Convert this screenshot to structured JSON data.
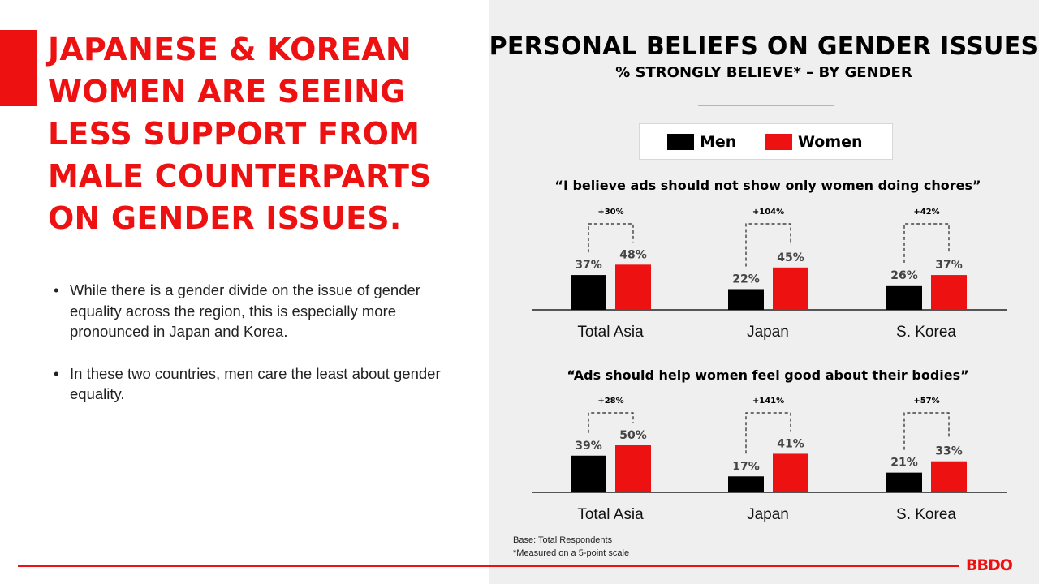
{
  "slide": {
    "headline": "JAPANESE & KOREAN WOMEN ARE SEEING LESS SUPPORT FROM MALE COUNTERPARTS ON GENDER ISSUES.",
    "bullets": [
      "While there is a gender divide on the issue of gender equality across the region, this is especially more pronounced in Japan and Korea.",
      "In these two countries, men care the least about gender equality."
    ],
    "footnotes": [
      "Base: Total Respondents",
      "*Measured on a 5-point scale"
    ],
    "logo": "BBDO"
  },
  "colors": {
    "accent": "#ee1111",
    "men": "#000000",
    "women": "#ee1111"
  },
  "legend": {
    "men": "Men",
    "women": "Women"
  },
  "chart_data": {
    "type": "bar",
    "title": "PERSONAL BELIEFS ON GENDER ISSUES",
    "subtitle": "% STRONGLY BELIEVE* – BY GENDER",
    "legend": [
      "Men",
      "Women"
    ],
    "panels": [
      {
        "title": "“I believe ads should not show only women doing chores”",
        "categories": [
          "Total Asia",
          "Japan",
          "S. Korea"
        ],
        "series": [
          {
            "name": "Men",
            "values": [
              37,
              22,
              26
            ],
            "labels": [
              "37%",
              "22%",
              "26%"
            ]
          },
          {
            "name": "Women",
            "values": [
              48,
              45,
              37
            ],
            "labels": [
              "48%",
              "45%",
              "37%"
            ]
          }
        ],
        "differences": [
          "+30%",
          "+104%",
          "+42%"
        ]
      },
      {
        "title": "“Ads should help women feel good about their bodies”",
        "categories": [
          "Total Asia",
          "Japan",
          "S. Korea"
        ],
        "series": [
          {
            "name": "Men",
            "values": [
              39,
              17,
              21
            ],
            "labels": [
              "39%",
              "17%",
              "21%"
            ]
          },
          {
            "name": "Women",
            "values": [
              50,
              41,
              33
            ],
            "labels": [
              "50%",
              "41%",
              "33%"
            ]
          }
        ],
        "differences": [
          "+28%",
          "+141%",
          "+57%"
        ]
      }
    ]
  }
}
